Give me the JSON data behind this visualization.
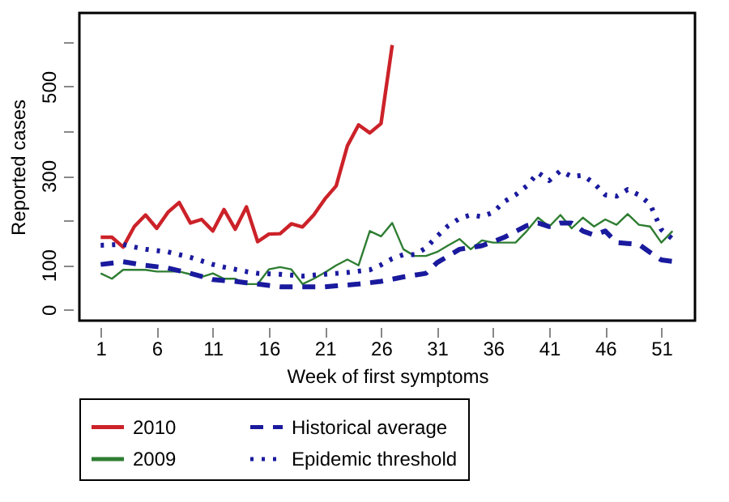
{
  "chart_data": {
    "type": "line",
    "xlabel": "Week of first symptoms",
    "ylabel": "Reported cases",
    "x": [
      1,
      2,
      3,
      4,
      5,
      6,
      7,
      8,
      9,
      10,
      11,
      12,
      13,
      14,
      15,
      16,
      17,
      18,
      19,
      20,
      21,
      22,
      23,
      24,
      25,
      26,
      27,
      28,
      29,
      30,
      31,
      32,
      33,
      34,
      35,
      36,
      37,
      38,
      39,
      40,
      41,
      42,
      43,
      44,
      45,
      46,
      47,
      48,
      49,
      50,
      51,
      52
    ],
    "xlim": [
      -0.9,
      54
    ],
    "xticks": [
      1,
      6,
      11,
      16,
      21,
      26,
      31,
      36,
      41,
      46,
      51
    ],
    "ylim": [
      -25,
      665
    ],
    "yticks": [
      0,
      100,
      {
        "value": 200,
        "label": null
      },
      300,
      {
        "value": 400,
        "label": null
      },
      500,
      {
        "value": 600,
        "label": null
      }
    ],
    "grid": false,
    "legend": "bottom",
    "marker": "none",
    "series": [
      {
        "name": "2010",
        "color": "#cc2229",
        "line_style": "solid",
        "values": [
          162,
          162,
          140,
          186,
          212,
          182,
          218,
          240,
          194,
          202,
          176,
          224,
          180,
          230,
          152,
          169,
          170,
          192,
          185,
          212,
          248,
          277,
          367,
          414,
          396,
          417,
          593,
          null,
          null,
          null,
          null,
          null,
          null,
          null,
          null,
          null,
          null,
          null,
          null,
          null,
          null,
          null,
          null,
          null,
          null,
          null,
          null,
          null,
          null,
          null,
          null,
          null
        ]
      },
      {
        "name": "2009",
        "color": "#2e7d32",
        "line_style": "solid",
        "values": [
          81,
          69,
          89,
          89,
          89,
          85,
          85,
          85,
          79,
          73,
          81,
          69,
          69,
          57,
          57,
          90,
          95,
          90,
          57,
          69,
          83,
          99,
          112,
          99,
          176,
          164,
          194,
          135,
          120,
          120,
          129,
          144,
          158,
          135,
          155,
          150,
          150,
          150,
          176,
          206,
          186,
          212,
          182,
          206,
          186,
          202,
          190,
          214,
          190,
          186,
          150,
          176
        ]
      },
      {
        "name": "Historical average",
        "color": "#1a1a9e",
        "line_style": "dashed",
        "values": [
          101,
          104,
          107,
          103,
          99,
          96,
          93,
          87,
          81,
          74,
          67,
          65,
          63,
          60,
          57,
          54,
          51,
          51,
          51,
          51,
          51,
          53,
          55,
          57,
          60,
          63,
          68,
          73,
          77,
          81,
          105,
          120,
          135,
          139,
          143,
          152,
          162,
          175,
          188,
          194,
          186,
          194,
          194,
          176,
          167,
          176,
          150,
          148,
          146,
          128,
          111,
          108
        ]
      },
      {
        "name": "Epidemic threshold",
        "color": "#1a1a9e",
        "line_style": "dotted",
        "values": [
          144,
          145,
          146,
          140,
          135,
          132,
          129,
          123,
          117,
          109,
          101,
          95,
          90,
          85,
          81,
          80,
          79,
          77,
          75,
          77,
          79,
          81,
          83,
          86,
          89,
          100,
          114,
          123,
          123,
          138,
          164,
          188,
          204,
          212,
          208,
          218,
          242,
          257,
          277,
          307,
          289,
          311,
          298,
          301,
          283,
          257,
          254,
          269,
          257,
          236,
          179,
          158
        ]
      }
    ]
  }
}
